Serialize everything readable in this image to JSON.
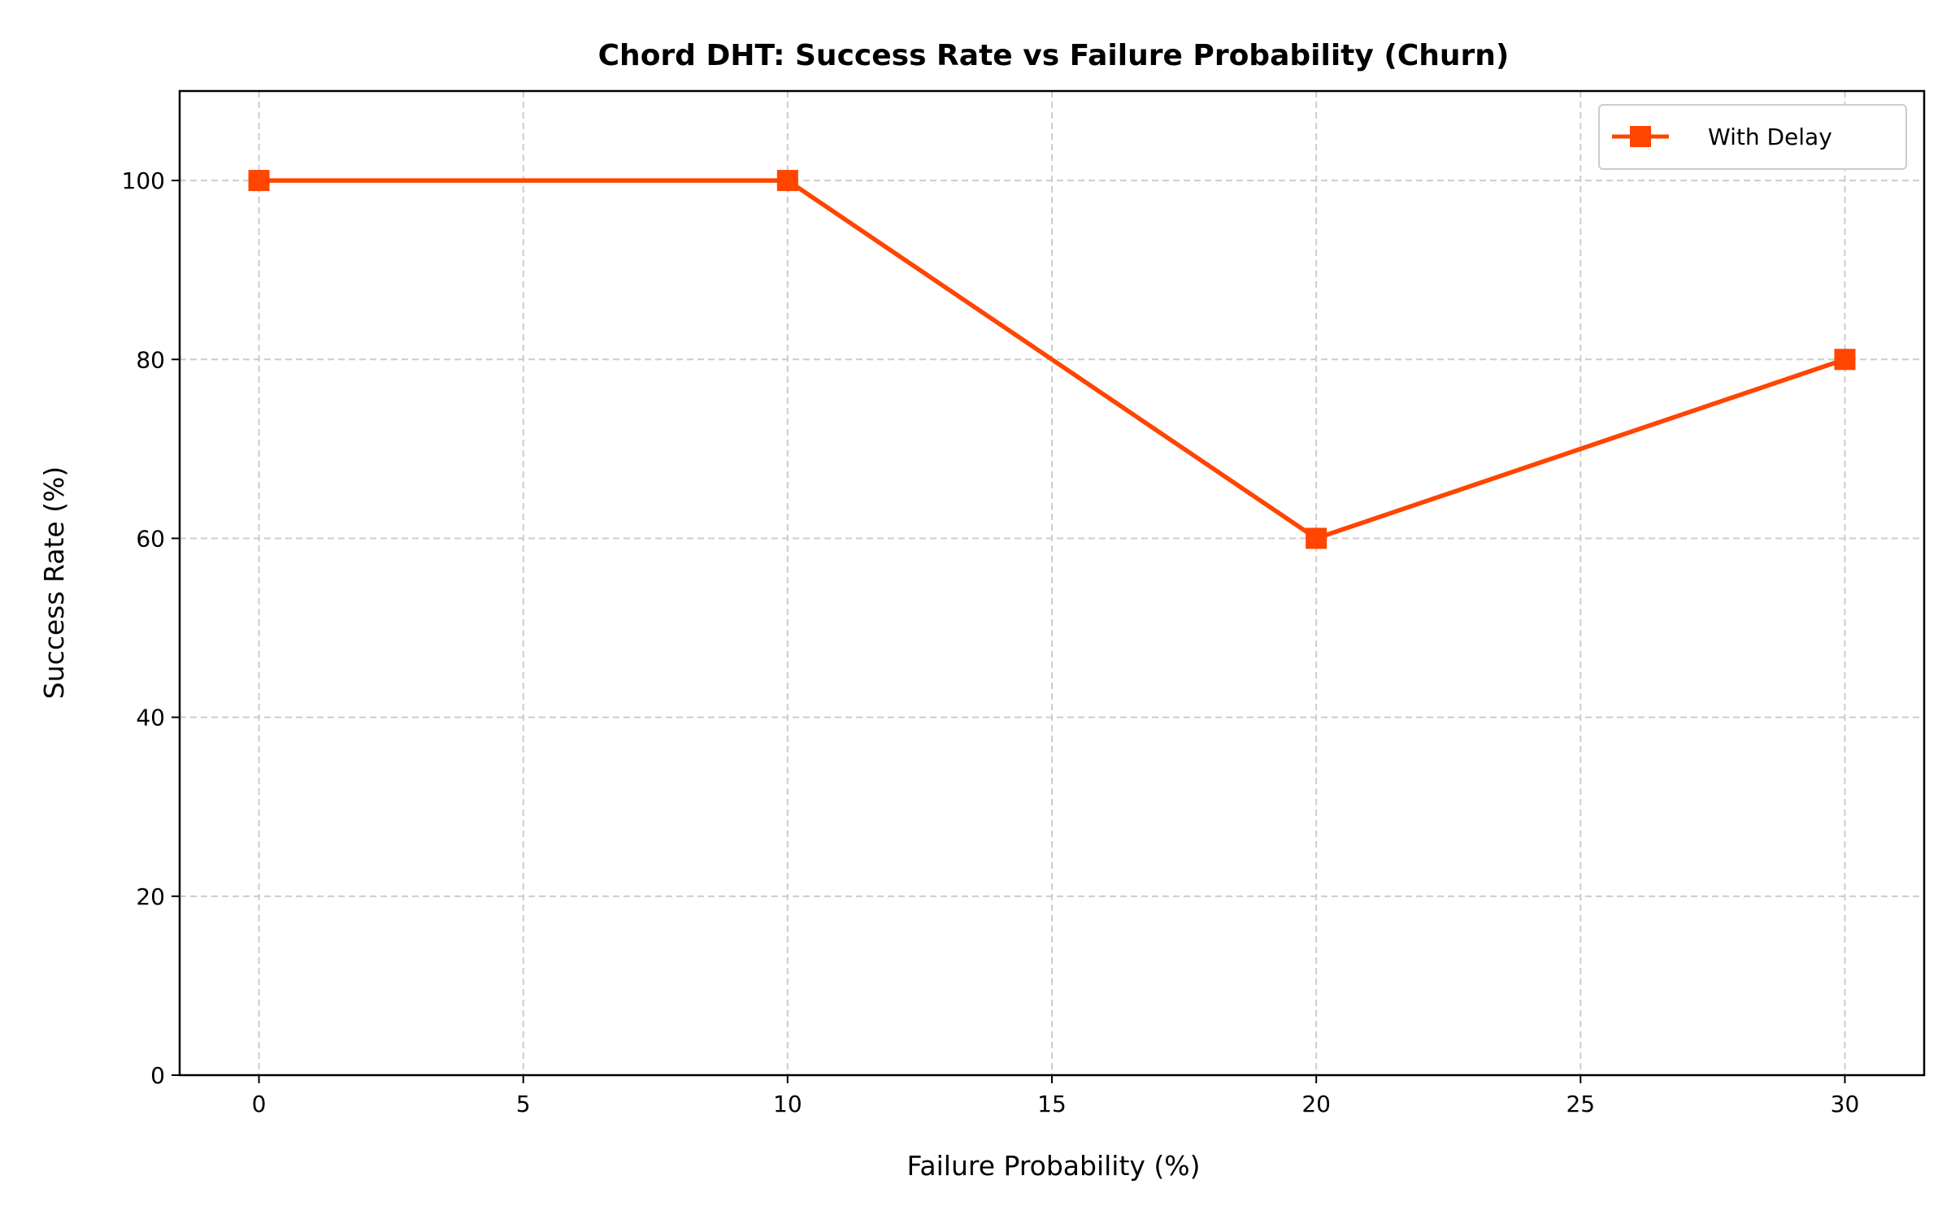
{
  "chart_data": {
    "type": "line",
    "title": "Chord DHT: Success Rate vs Failure Probability (Churn)",
    "xlabel": "Failure Probability (%)",
    "ylabel": "Success Rate (%)",
    "xlim": [
      -1.5,
      31.5
    ],
    "ylim": [
      0,
      110
    ],
    "xticks": [
      0,
      5,
      10,
      15,
      20,
      25,
      30
    ],
    "yticks": [
      0,
      20,
      40,
      60,
      80,
      100
    ],
    "xtick_labels": [
      "0",
      "5",
      "10",
      "15",
      "20",
      "25",
      "30"
    ],
    "ytick_labels": [
      "0",
      "20",
      "40",
      "60",
      "80",
      "100"
    ],
    "grid": true,
    "legend_position": "top-right",
    "series": [
      {
        "name": "With Delay",
        "x": [
          0,
          10,
          20,
          30
        ],
        "y": [
          100,
          100,
          60,
          80
        ],
        "color": "#ff4500",
        "marker": "square"
      }
    ]
  }
}
